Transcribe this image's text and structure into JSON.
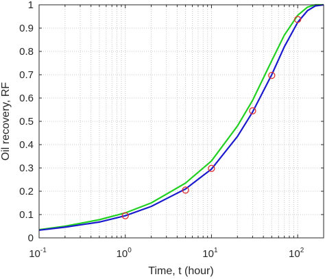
{
  "chart_data": {
    "type": "line",
    "title": "",
    "xlabel": "Time, t (hour)",
    "ylabel": "Oil recovery, RF",
    "xscale": "log",
    "xlim": [
      0.1,
      200
    ],
    "ylim": [
      0,
      1
    ],
    "grid": "on (minor dotted, log x)",
    "legend": "none",
    "x_ticks": [
      {
        "base": "10",
        "exp": "-1",
        "value": 0.1
      },
      {
        "base": "10",
        "exp": "0",
        "value": 1
      },
      {
        "base": "10",
        "exp": "1",
        "value": 10
      },
      {
        "base": "10",
        "exp": "2",
        "value": 100
      }
    ],
    "y_ticks": [
      {
        "label": "0",
        "value": 0
      },
      {
        "label": "0.1",
        "value": 0.1
      },
      {
        "label": "0.2",
        "value": 0.2
      },
      {
        "label": "0.3",
        "value": 0.3
      },
      {
        "label": "0.4",
        "value": 0.4
      },
      {
        "label": "0.5",
        "value": 0.5
      },
      {
        "label": "0.6",
        "value": 0.6
      },
      {
        "label": "0.7",
        "value": 0.7
      },
      {
        "label": "0.8",
        "value": 0.8
      },
      {
        "label": "0.9",
        "value": 0.9
      },
      {
        "label": "1",
        "value": 1
      }
    ],
    "series": [
      {
        "kind": "line",
        "color": "#22d022",
        "x": [
          0.1,
          0.2,
          0.5,
          1,
          2,
          5,
          10,
          20,
          30,
          50,
          70,
          100,
          130,
          160,
          200
        ],
        "y": [
          0.035,
          0.05,
          0.078,
          0.107,
          0.15,
          0.235,
          0.33,
          0.48,
          0.59,
          0.76,
          0.87,
          0.955,
          0.99,
          1.0,
          1.0
        ]
      },
      {
        "kind": "line",
        "color": "#1a1acc",
        "x": [
          0.1,
          0.2,
          0.5,
          1,
          2,
          5,
          10,
          20,
          30,
          50,
          70,
          100,
          130,
          160,
          200
        ],
        "y": [
          0.033,
          0.046,
          0.068,
          0.095,
          0.135,
          0.21,
          0.295,
          0.435,
          0.54,
          0.7,
          0.82,
          0.925,
          0.975,
          0.995,
          1.0
        ]
      },
      {
        "kind": "markers",
        "marker": "circle",
        "color": "#e03030",
        "x": [
          1,
          5,
          10,
          30,
          50,
          100
        ],
        "y": [
          0.095,
          0.205,
          0.298,
          0.545,
          0.697,
          0.937
        ]
      }
    ]
  }
}
